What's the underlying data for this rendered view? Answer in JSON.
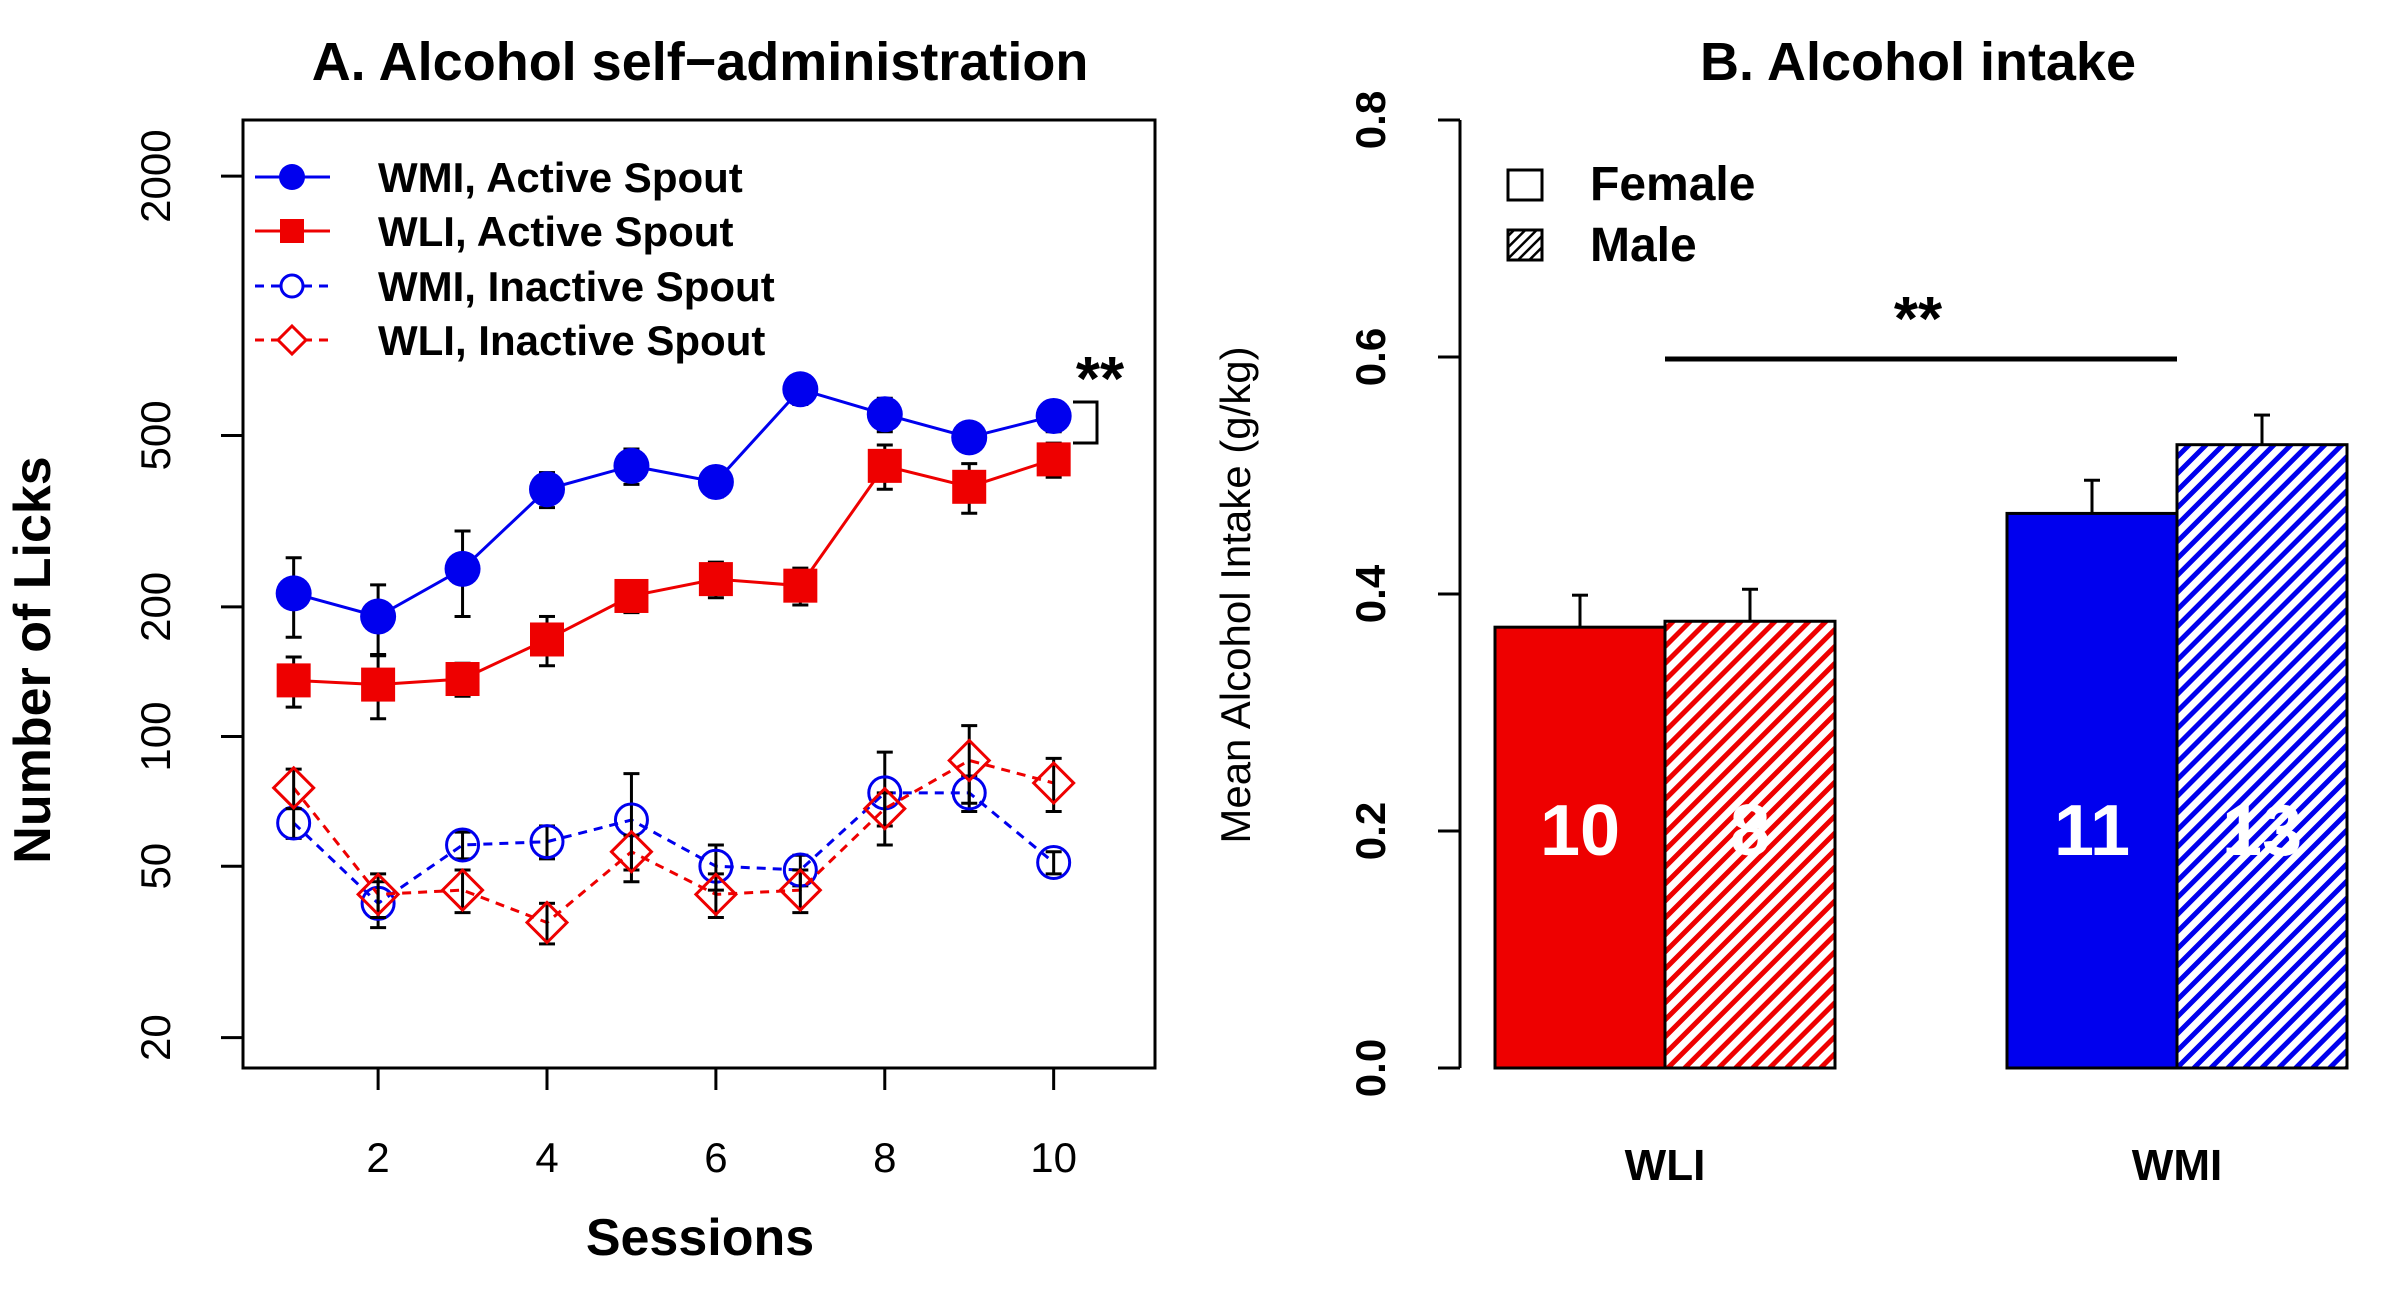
{
  "colors": {
    "wmi": "#0000ee",
    "wli": "#ee0000",
    "axis": "#000000"
  },
  "chart_data": [
    {
      "type": "line",
      "title": "A. Alcohol self−administration",
      "xlabel": "Sessions",
      "ylabel": "Number of Licks",
      "y_scale": "log",
      "ylim": [
        17,
        2700
      ],
      "xlim": [
        0.4,
        11.2
      ],
      "x_ticks": [
        2,
        4,
        6,
        8,
        10
      ],
      "x_tick_labels": [
        "2",
        "4",
        "6",
        "8",
        "10"
      ],
      "y_ticks": [
        20,
        50,
        100,
        200,
        500,
        2000
      ],
      "y_tick_labels": [
        "20",
        "50",
        "100",
        "200",
        "500",
        "2000"
      ],
      "legend_position": "top-left",
      "x": [
        1,
        2,
        3,
        4,
        5,
        6,
        7,
        8,
        9,
        10
      ],
      "series": [
        {
          "name": "WMI, Active Spout",
          "color": "#0000ee",
          "line": "solid",
          "marker": "filled-circle",
          "values": [
            215,
            190,
            245,
            375,
            425,
            390,
            640,
            560,
            495,
            555
          ],
          "err": [
            45,
            35,
            55,
            35,
            40,
            30,
            50,
            50,
            35,
            45
          ]
        },
        {
          "name": "WLI, Active Spout",
          "color": "#ee0000",
          "line": "solid",
          "marker": "filled-square",
          "values": [
            135,
            132,
            136,
            168,
            212,
            232,
            224,
            425,
            380,
            440
          ],
          "err": [
            18,
            22,
            12,
            22,
            18,
            22,
            22,
            50,
            50,
            40
          ]
        },
        {
          "name": "WMI, Inactive Spout",
          "color": "#0000ee",
          "line": "dashed",
          "marker": "open-circle",
          "values": [
            63,
            41,
            56,
            57,
            64,
            50,
            49,
            74,
            74,
            51
          ],
          "err": [
            5,
            5,
            4,
            5,
            18,
            6,
            4,
            18,
            7,
            3
          ]
        },
        {
          "name": "WLI, Inactive Spout",
          "color": "#ee0000",
          "line": "dashed",
          "marker": "open-diamond",
          "values": [
            76,
            43,
            44,
            37,
            54,
            43,
            44,
            68,
            88,
            78
          ],
          "err": [
            8,
            5,
            5,
            4,
            5,
            5,
            5,
            6,
            18,
            11
          ]
        }
      ],
      "annotations": [
        {
          "text": "**",
          "note": "WMI vs WLI active spout, session 10"
        }
      ]
    },
    {
      "type": "bar",
      "title": "B. Alcohol intake",
      "xlabel": "",
      "ylabel": "Mean Alcohol Intake (g/kg)",
      "ylim": [
        0,
        0.8
      ],
      "y_ticks": [
        0.0,
        0.2,
        0.4,
        0.6,
        0.8
      ],
      "y_tick_labels": [
        "0.0",
        "0.2",
        "0.4",
        "0.6",
        "0.8"
      ],
      "categories": [
        "WLI",
        "WMI"
      ],
      "legend_position": "top-left",
      "legend": [
        {
          "label": "Female",
          "fill": "open"
        },
        {
          "label": "Male",
          "fill": "hatched"
        }
      ],
      "series": [
        {
          "name": "Female",
          "values": [
            0.372,
            0.468
          ],
          "err": [
            0.027,
            0.028
          ],
          "n_labels": [
            "10",
            "11"
          ]
        },
        {
          "name": "Male",
          "values": [
            0.377,
            0.526
          ],
          "err": [
            0.027,
            0.025
          ],
          "n_labels": [
            "8",
            "13"
          ]
        }
      ],
      "bar_colors": [
        "#ee0000",
        "#0000ee"
      ],
      "annotations": [
        {
          "text": "**",
          "note": "WLI vs WMI"
        }
      ]
    }
  ]
}
